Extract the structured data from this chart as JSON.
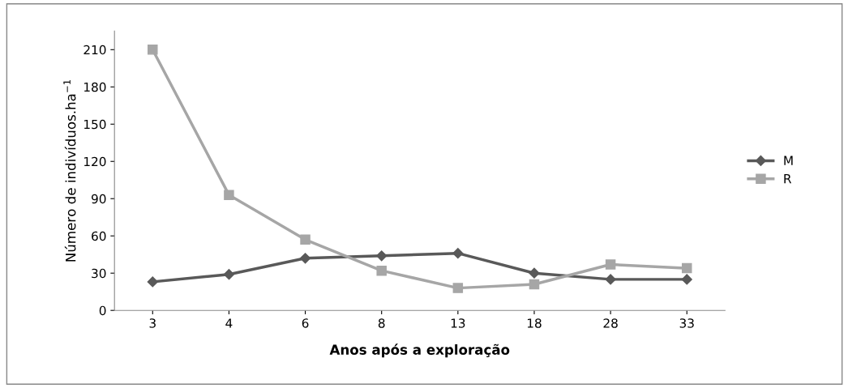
{
  "chart_data": {
    "type": "line",
    "xlabel": "Anos após a exploração",
    "ylabel": "Número de indivíduos.ha$^{−1}$",
    "categories": [
      "3",
      "4",
      "6",
      "8",
      "13",
      "18",
      "28",
      "33"
    ],
    "series": [
      {
        "name": "M",
        "color": "#595959",
        "marker": "diamond",
        "values": [
          23,
          29,
          42,
          44,
          46,
          30,
          25,
          25
        ]
      },
      {
        "name": "R",
        "color": "#a6a6a6",
        "marker": "square",
        "values": [
          210,
          93,
          57,
          32,
          18,
          21,
          37,
          34
        ]
      }
    ],
    "ylim": [
      0,
      225
    ],
    "yticks": [
      0,
      30,
      60,
      90,
      120,
      150,
      180,
      210
    ],
    "grid": false,
    "legend": "right"
  }
}
